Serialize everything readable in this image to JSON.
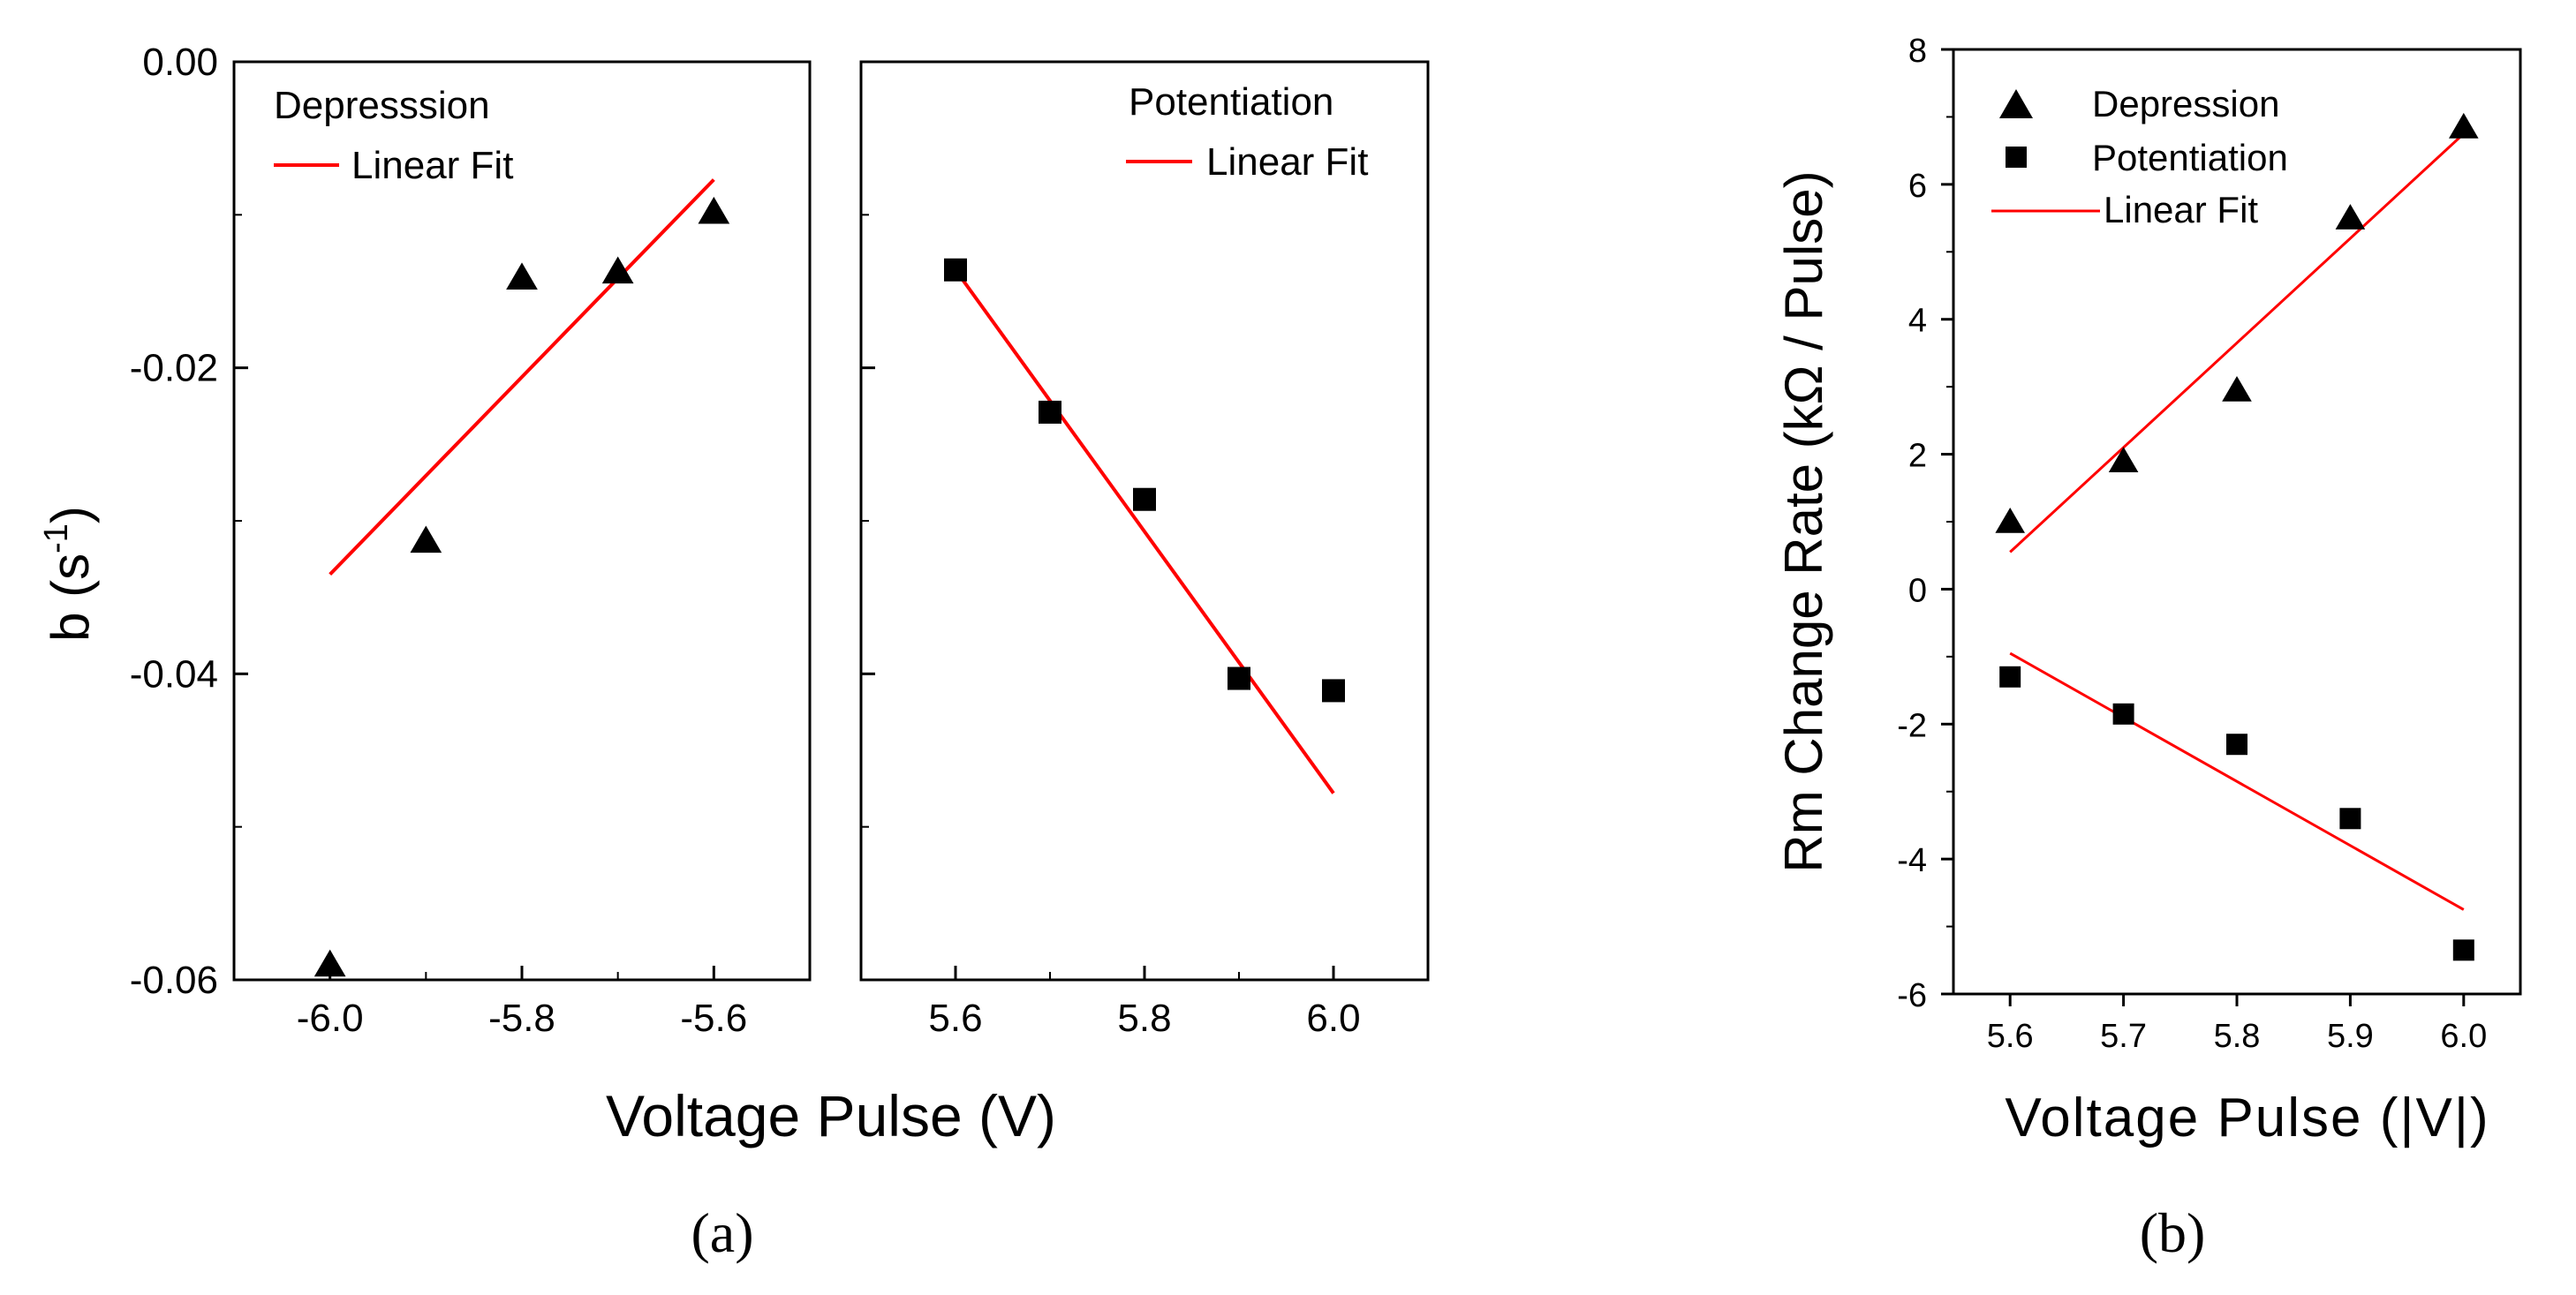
{
  "chart_data": [
    {
      "panel": "(a)",
      "type": "scatter",
      "ylabel_base": "b (s",
      "ylabel_sup": "-1",
      "ylabel_close": ")",
      "xlabel": "Voltage Pulse (V)",
      "ylim": [
        -0.06,
        0.0
      ],
      "yticks": [
        0.0,
        -0.02,
        -0.04,
        -0.06
      ],
      "ytick_labels": [
        "0.00",
        "-0.02",
        "-0.04",
        "-0.06"
      ],
      "subplots": [
        {
          "name": "Depression",
          "xlim": [
            -6.1,
            -5.5
          ],
          "xticks": [
            -6.0,
            -5.8,
            -5.6
          ],
          "xtick_labels": [
            "-6.0",
            "-5.8",
            "-5.6"
          ],
          "legend": {
            "series_label": "Depresssion",
            "fit_label": "Linear Fit",
            "placement": "top-left"
          },
          "marker": "triangle",
          "x": [
            -6.0,
            -5.9,
            -5.8,
            -5.7,
            -5.6
          ],
          "y": [
            -0.059,
            -0.0313,
            -0.0141,
            -0.0137,
            -0.0098
          ],
          "fit": {
            "x": [
              -6.0,
              -5.6
            ],
            "y": [
              -0.0335,
              -0.0077
            ]
          },
          "fit_color": "#ff0000"
        },
        {
          "name": "Potentiation",
          "xlim": [
            5.5,
            6.1
          ],
          "xticks": [
            5.6,
            5.8,
            6.0
          ],
          "xtick_labels": [
            "5.6",
            "5.8",
            "6.0"
          ],
          "legend": {
            "series_label": "Potentiation",
            "fit_label": "Linear Fit",
            "placement": "top-right"
          },
          "marker": "square",
          "x": [
            5.6,
            5.7,
            5.8,
            5.9,
            6.0
          ],
          "y": [
            -0.0136,
            -0.0229,
            -0.0286,
            -0.0403,
            -0.0411
          ],
          "fit": {
            "x": [
              5.6,
              6.0
            ],
            "y": [
              -0.0136,
              -0.0478
            ]
          },
          "fit_color": "#ff0000"
        }
      ]
    },
    {
      "panel": "(b)",
      "type": "scatter",
      "ylabel": "Rm Change Rate (kΩ / Pulse)",
      "xlabel": "Voltage Pulse (|V|)",
      "xlim": [
        5.55,
        6.05
      ],
      "ylim": [
        -6,
        8
      ],
      "xticks": [
        5.6,
        5.7,
        5.8,
        5.9,
        6.0
      ],
      "xtick_labels": [
        "5.6",
        "5.7",
        "5.8",
        "5.9",
        "6.0"
      ],
      "yticks": [
        -6,
        -4,
        -2,
        0,
        2,
        4,
        6,
        8
      ],
      "ytick_labels": [
        "-6",
        "-4",
        "-2",
        "0",
        "2",
        "4",
        "6",
        "8"
      ],
      "legend": {
        "entries": [
          "Depression",
          "Potentiation",
          "Linear Fit"
        ],
        "placement": "top-left"
      },
      "series": [
        {
          "name": "Depression",
          "marker": "triangle",
          "x": [
            5.6,
            5.7,
            5.8,
            5.9,
            6.0
          ],
          "y": [
            1.0,
            1.9,
            2.95,
            5.5,
            6.85
          ]
        },
        {
          "name": "Potentiation",
          "marker": "square",
          "x": [
            5.6,
            5.7,
            5.8,
            5.9,
            6.0
          ],
          "y": [
            -1.3,
            -1.85,
            -2.3,
            -3.4,
            -5.35
          ]
        }
      ],
      "fits": [
        {
          "name": "Depression fit",
          "x": [
            5.6,
            6.0
          ],
          "y": [
            0.55,
            6.75
          ]
        },
        {
          "name": "Potentiation fit",
          "x": [
            5.6,
            6.0
          ],
          "y": [
            -0.95,
            -4.75
          ]
        }
      ],
      "fit_color": "#ff0000"
    }
  ]
}
